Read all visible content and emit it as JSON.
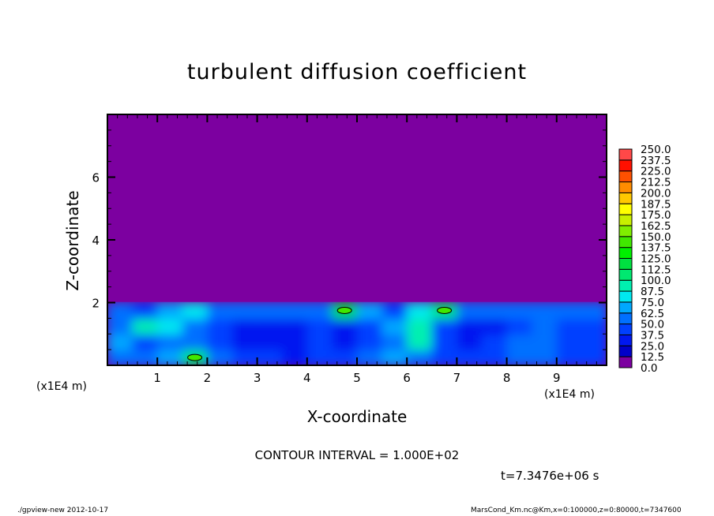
{
  "chart_data": {
    "type": "heatmap",
    "title": "turbulent diffusion coefficient",
    "xlabel": "X-coordinate",
    "ylabel": "Z-coordinate",
    "x_unit_label": "(x1E4 m)",
    "xlim": [
      0,
      10
    ],
    "ylim": [
      0,
      8
    ],
    "x_ticks": [
      1,
      2,
      3,
      4,
      5,
      6,
      7,
      8,
      9
    ],
    "y_ticks": [
      2,
      4,
      6
    ],
    "contour_interval": "CONTOUR INTERVAL = 1.000E+02",
    "time_label": "t=7.3476e+06 s",
    "colorbar": {
      "levels": [
        "0.0",
        "12.5",
        "25.0",
        "37.5",
        "50.0",
        "62.5",
        "75.0",
        "87.5",
        "100.0",
        "112.5",
        "125.0",
        "137.5",
        "150.0",
        "162.5",
        "175.0",
        "187.5",
        "200.0",
        "212.5",
        "225.0",
        "237.5",
        "250.0"
      ],
      "colors": [
        "#7c00a0",
        "#1c1c9c",
        "#0000c8",
        "#0018f0",
        "#0040ff",
        "#0070ff",
        "#00a8ff",
        "#00e8f0",
        "#00f0b0",
        "#00e870",
        "#00e040",
        "#00f000",
        "#40e800",
        "#80ee00",
        "#c8f000",
        "#ffff00",
        "#ffc800",
        "#ff8c00",
        "#ff5000",
        "#ff1000",
        "#ff4848",
        "#ff8080"
      ]
    },
    "x_centers": [
      0.25,
      0.75,
      1.25,
      1.75,
      2.25,
      2.75,
      3.25,
      3.75,
      4.25,
      4.75,
      5.25,
      5.75,
      6.25,
      6.75,
      7.25,
      7.75,
      8.25,
      8.75,
      9.25,
      9.75
    ],
    "z_centers": [
      0.25,
      0.75,
      1.25,
      1.75,
      2.25
    ],
    "values": [
      [
        60,
        55,
        70,
        110,
        60,
        45,
        40,
        35,
        45,
        40,
        50,
        70,
        55,
        45,
        40,
        45,
        55,
        60,
        45,
        40
      ],
      [
        70,
        45,
        60,
        55,
        40,
        35,
        30,
        30,
        45,
        35,
        40,
        60,
        90,
        40,
        35,
        40,
        50,
        55,
        40,
        45
      ],
      [
        55,
        90,
        75,
        50,
        40,
        35,
        30,
        30,
        40,
        35,
        45,
        70,
        95,
        45,
        35,
        35,
        45,
        50,
        40,
        45
      ],
      [
        50,
        45,
        65,
        80,
        55,
        50,
        55,
        60,
        55,
        115,
        70,
        40,
        75,
        105,
        60,
        50,
        55,
        50,
        55,
        60
      ],
      [
        0,
        0,
        0,
        0,
        0,
        0,
        0,
        0,
        0,
        0,
        0,
        0,
        0,
        0,
        0,
        0,
        0,
        0,
        0,
        0
      ]
    ]
  },
  "footer": {
    "left": "./gpview-new   2012-10-17",
    "right": "MarsCond_Km.nc@Km,x=0:100000,z=0:80000,t=7347600"
  }
}
